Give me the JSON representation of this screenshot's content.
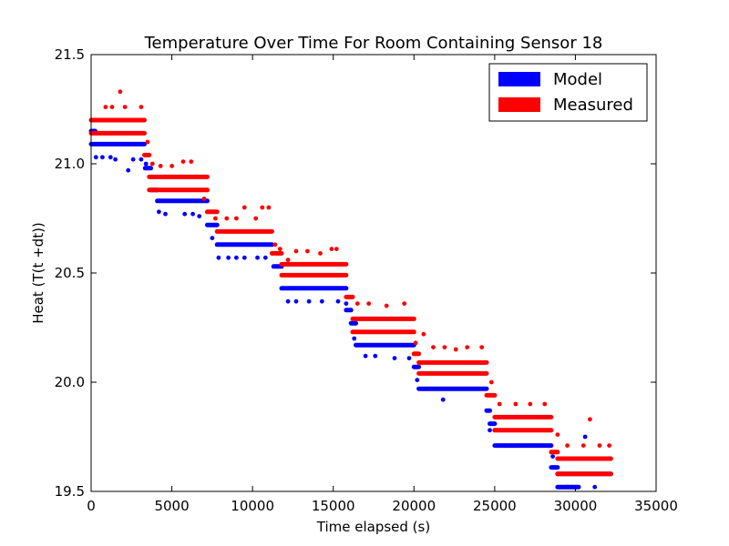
{
  "chart_data": {
    "type": "scatter",
    "title": "Temperature Over Time For Room Containing Sensor 18",
    "xlabel": "Time elapsed (s)",
    "ylabel": "Heat (T(t +dt))",
    "xlim": [
      0,
      35000
    ],
    "ylim": [
      19.5,
      21.5
    ],
    "x_ticks": [
      0,
      5000,
      10000,
      15000,
      20000,
      25000,
      30000,
      35000
    ],
    "x_tick_labels": [
      "0",
      "5000",
      "10000",
      "15000",
      "20000",
      "25000",
      "30000",
      "35000"
    ],
    "y_ticks": [
      19.5,
      20.0,
      20.5,
      21.0,
      21.5
    ],
    "y_tick_labels": [
      "19.5",
      "20.0",
      "20.5",
      "21.0",
      "21.5"
    ],
    "grid": false,
    "legend_position": "top-right",
    "series": [
      {
        "name": "Model",
        "color": "#0000ff",
        "segments": [
          {
            "x": [
              0,
              3300
            ],
            "y": 21.09
          },
          {
            "x": [
              0,
              250
            ],
            "y": 21.15
          },
          {
            "x": [
              3350,
              3700
            ],
            "y": 20.98
          },
          {
            "x": [
              3700,
              4100
            ],
            "y": 20.88
          },
          {
            "x": [
              4100,
              7200
            ],
            "y": 20.83
          },
          {
            "x": [
              7200,
              7800
            ],
            "y": 20.72
          },
          {
            "x": [
              7800,
              11200
            ],
            "y": 20.63
          },
          {
            "x": [
              11300,
              11800
            ],
            "y": 20.53
          },
          {
            "x": [
              11800,
              15800
            ],
            "y": 20.43
          },
          {
            "x": [
              15800,
              16100
            ],
            "y": 20.33
          },
          {
            "x": [
              16100,
              16400
            ],
            "y": 20.27
          },
          {
            "x": [
              16400,
              20000
            ],
            "y": 20.17
          },
          {
            "x": [
              20000,
              20300
            ],
            "y": 20.07
          },
          {
            "x": [
              20300,
              24500
            ],
            "y": 19.97
          },
          {
            "x": [
              24500,
              24700
            ],
            "y": 19.87
          },
          {
            "x": [
              24700,
              25000
            ],
            "y": 19.81
          },
          {
            "x": [
              25000,
              28500
            ],
            "y": 19.71
          },
          {
            "x": [
              28500,
              28900
            ],
            "y": 19.61
          },
          {
            "x": [
              28900,
              30200
            ],
            "y": 19.52
          },
          {
            "x": [
              28900,
              32200
            ],
            "y": 19.58
          }
        ],
        "points": [
          {
            "x": 300,
            "y": 21.03
          },
          {
            "x": 700,
            "y": 21.03
          },
          {
            "x": 1200,
            "y": 21.03
          },
          {
            "x": 1500,
            "y": 21.02
          },
          {
            "x": 2300,
            "y": 20.97
          },
          {
            "x": 2600,
            "y": 21.02
          },
          {
            "x": 3100,
            "y": 21.02
          },
          {
            "x": 3400,
            "y": 21.0
          },
          {
            "x": 4200,
            "y": 20.78
          },
          {
            "x": 4600,
            "y": 20.77
          },
          {
            "x": 5800,
            "y": 20.77
          },
          {
            "x": 6300,
            "y": 20.77
          },
          {
            "x": 6700,
            "y": 20.76
          },
          {
            "x": 7500,
            "y": 20.66
          },
          {
            "x": 7900,
            "y": 20.57
          },
          {
            "x": 8500,
            "y": 20.57
          },
          {
            "x": 9000,
            "y": 20.57
          },
          {
            "x": 9500,
            "y": 20.57
          },
          {
            "x": 10300,
            "y": 20.57
          },
          {
            "x": 10800,
            "y": 20.57
          },
          {
            "x": 11500,
            "y": 20.53
          },
          {
            "x": 12200,
            "y": 20.37
          },
          {
            "x": 12700,
            "y": 20.37
          },
          {
            "x": 13500,
            "y": 20.37
          },
          {
            "x": 14300,
            "y": 20.37
          },
          {
            "x": 15300,
            "y": 20.37
          },
          {
            "x": 15800,
            "y": 20.36
          },
          {
            "x": 16300,
            "y": 20.2
          },
          {
            "x": 17000,
            "y": 20.12
          },
          {
            "x": 17600,
            "y": 20.12
          },
          {
            "x": 18800,
            "y": 20.11
          },
          {
            "x": 19700,
            "y": 20.11
          },
          {
            "x": 20200,
            "y": 20.01
          },
          {
            "x": 21800,
            "y": 19.92
          },
          {
            "x": 24700,
            "y": 19.78
          },
          {
            "x": 25600,
            "y": 19.71
          },
          {
            "x": 26400,
            "y": 19.71
          },
          {
            "x": 27200,
            "y": 19.71
          },
          {
            "x": 28600,
            "y": 19.66
          },
          {
            "x": 29500,
            "y": 19.52
          },
          {
            "x": 30600,
            "y": 19.75
          },
          {
            "x": 31200,
            "y": 19.52
          }
        ]
      },
      {
        "name": "Measured",
        "color": "#ff0000",
        "segments": [
          {
            "x": [
              0,
              3300
            ],
            "y": 21.2
          },
          {
            "x": [
              0,
              3300
            ],
            "y": 21.14
          },
          {
            "x": [
              3300,
              3600
            ],
            "y": 21.04
          },
          {
            "x": [
              3600,
              7200
            ],
            "y": 20.94
          },
          {
            "x": [
              3600,
              7200
            ],
            "y": 20.88
          },
          {
            "x": [
              7200,
              7800
            ],
            "y": 20.78
          },
          {
            "x": [
              7800,
              11200
            ],
            "y": 20.69
          },
          {
            "x": [
              11200,
              11800
            ],
            "y": 20.59
          },
          {
            "x": [
              11800,
              15800
            ],
            "y": 20.54
          },
          {
            "x": [
              11800,
              15800
            ],
            "y": 20.49
          },
          {
            "x": [
              15800,
              16200
            ],
            "y": 20.39
          },
          {
            "x": [
              16200,
              20000
            ],
            "y": 20.29
          },
          {
            "x": [
              16200,
              20000
            ],
            "y": 20.23
          },
          {
            "x": [
              20000,
              20300
            ],
            "y": 20.13
          },
          {
            "x": [
              20300,
              24500
            ],
            "y": 20.09
          },
          {
            "x": [
              20300,
              24500
            ],
            "y": 20.04
          },
          {
            "x": [
              24500,
              25000
            ],
            "y": 19.94
          },
          {
            "x": [
              25000,
              28500
            ],
            "y": 19.84
          },
          {
            "x": [
              25000,
              28500
            ],
            "y": 19.78
          },
          {
            "x": [
              28500,
              28900
            ],
            "y": 19.68
          },
          {
            "x": [
              28900,
              32200
            ],
            "y": 19.65
          },
          {
            "x": [
              28900,
              32200
            ],
            "y": 19.58
          }
        ],
        "points": [
          {
            "x": 900,
            "y": 21.26
          },
          {
            "x": 1300,
            "y": 21.26
          },
          {
            "x": 1800,
            "y": 21.33
          },
          {
            "x": 2100,
            "y": 21.26
          },
          {
            "x": 2600,
            "y": 21.2
          },
          {
            "x": 3100,
            "y": 21.26
          },
          {
            "x": 3500,
            "y": 21.1
          },
          {
            "x": 3800,
            "y": 21.0
          },
          {
            "x": 4300,
            "y": 20.99
          },
          {
            "x": 5000,
            "y": 20.99
          },
          {
            "x": 5700,
            "y": 21.01
          },
          {
            "x": 6200,
            "y": 21.01
          },
          {
            "x": 7000,
            "y": 20.84
          },
          {
            "x": 7700,
            "y": 20.75
          },
          {
            "x": 8400,
            "y": 20.75
          },
          {
            "x": 9000,
            "y": 20.75
          },
          {
            "x": 9500,
            "y": 20.8
          },
          {
            "x": 10200,
            "y": 20.75
          },
          {
            "x": 10600,
            "y": 20.8
          },
          {
            "x": 11000,
            "y": 20.8
          },
          {
            "x": 11400,
            "y": 20.63
          },
          {
            "x": 11700,
            "y": 20.61
          },
          {
            "x": 12200,
            "y": 20.56
          },
          {
            "x": 12700,
            "y": 20.6
          },
          {
            "x": 13400,
            "y": 20.6
          },
          {
            "x": 14200,
            "y": 20.59
          },
          {
            "x": 14900,
            "y": 20.61
          },
          {
            "x": 15200,
            "y": 20.61
          },
          {
            "x": 16500,
            "y": 20.36
          },
          {
            "x": 17200,
            "y": 20.36
          },
          {
            "x": 18300,
            "y": 20.35
          },
          {
            "x": 19400,
            "y": 20.36
          },
          {
            "x": 20100,
            "y": 20.18
          },
          {
            "x": 20600,
            "y": 20.22
          },
          {
            "x": 21200,
            "y": 20.16
          },
          {
            "x": 21900,
            "y": 20.16
          },
          {
            "x": 22600,
            "y": 20.15
          },
          {
            "x": 23300,
            "y": 20.16
          },
          {
            "x": 24200,
            "y": 20.16
          },
          {
            "x": 24800,
            "y": 20.0
          },
          {
            "x": 25300,
            "y": 19.9
          },
          {
            "x": 26300,
            "y": 19.9
          },
          {
            "x": 27200,
            "y": 19.9
          },
          {
            "x": 28100,
            "y": 19.9
          },
          {
            "x": 28900,
            "y": 19.76
          },
          {
            "x": 29500,
            "y": 19.71
          },
          {
            "x": 30500,
            "y": 19.71
          },
          {
            "x": 30900,
            "y": 19.83
          },
          {
            "x": 31500,
            "y": 19.71
          },
          {
            "x": 32100,
            "y": 19.71
          }
        ]
      }
    ]
  }
}
